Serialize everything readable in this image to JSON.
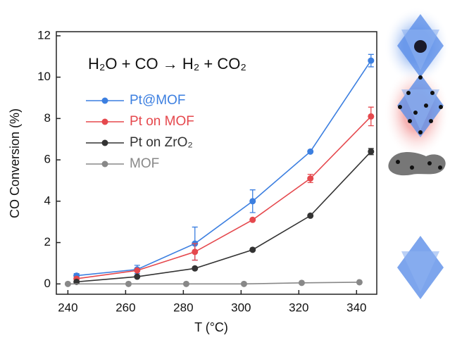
{
  "chart_data": {
    "type": "line",
    "annotation": "H₂O + CO → H₂ + CO₂",
    "x_label": "T (°C)",
    "y_label": "CO Conversion (%)",
    "xlim": [
      236,
      347
    ],
    "ylim": [
      -0.5,
      12.2
    ],
    "xticks": [
      240,
      260,
      280,
      300,
      320,
      340
    ],
    "yticks": [
      0,
      2,
      4,
      6,
      8,
      10,
      12
    ],
    "series": [
      {
        "name": "Pt@MOF",
        "color": "#3c7fe0",
        "x": [
          243,
          264,
          284,
          304,
          324,
          345
        ],
        "values": [
          0.4,
          0.7,
          1.95,
          4.0,
          6.4,
          10.8
        ],
        "errors": [
          0.1,
          0.2,
          0.8,
          0.55,
          null,
          0.3
        ]
      },
      {
        "name": "Pt on MOF",
        "color": "#e5484d",
        "x": [
          243,
          264,
          284,
          304,
          324,
          345
        ],
        "values": [
          0.25,
          0.65,
          1.55,
          3.1,
          5.1,
          8.1
        ],
        "errors": [
          null,
          null,
          0.4,
          null,
          0.2,
          0.45
        ]
      },
      {
        "name": "Pt on ZrO₂",
        "color": "#333333",
        "x": [
          243,
          264,
          284,
          304,
          324,
          345
        ],
        "values": [
          0.1,
          0.35,
          0.75,
          1.65,
          3.3,
          6.4
        ],
        "errors": [
          null,
          null,
          null,
          null,
          null,
          0.15
        ]
      },
      {
        "name": "MOF",
        "color": "#888888",
        "x": [
          240,
          261,
          281,
          301,
          321,
          341
        ],
        "values": [
          0.0,
          0.0,
          0.0,
          0.0,
          0.05,
          0.08
        ],
        "errors": [
          null,
          null,
          null,
          null,
          null,
          null
        ]
      }
    ]
  }
}
